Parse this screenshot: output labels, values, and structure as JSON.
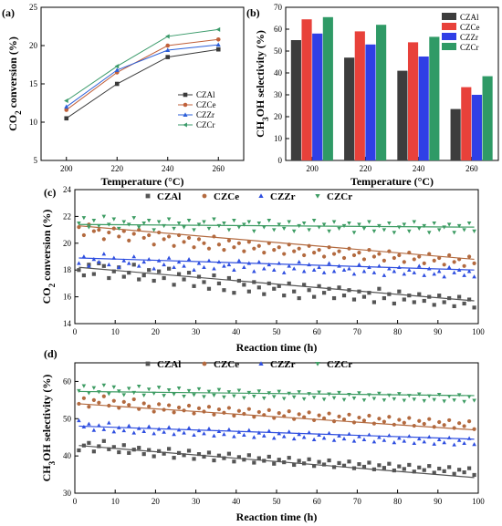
{
  "chart_data": [
    {
      "panel": "(a)",
      "type": "line",
      "xlabel": "Temperature (°C)",
      "ylabel": "CO₂ conversion (%)",
      "xlim": [
        190,
        270
      ],
      "ylim": [
        5,
        25
      ],
      "x": [
        200,
        220,
        240,
        260
      ],
      "xticks": [
        200,
        220,
        240,
        260
      ],
      "yticks": [
        5,
        10,
        15,
        20,
        25
      ],
      "legend_position": "center-right",
      "series": [
        {
          "name": "CZAl",
          "marker": "square",
          "color": "#3a3a3a",
          "values": [
            10.5,
            15.0,
            18.5,
            19.5
          ]
        },
        {
          "name": "CZCe",
          "marker": "circle",
          "color": "#c0603a",
          "values": [
            11.6,
            16.5,
            20.0,
            20.8
          ]
        },
        {
          "name": "CZZr",
          "marker": "triangle-up",
          "color": "#2b5fd9",
          "values": [
            12.0,
            16.8,
            19.4,
            20.1
          ]
        },
        {
          "name": "CZCr",
          "marker": "triangle-left",
          "color": "#3a9a6a",
          "values": [
            12.8,
            17.3,
            21.2,
            22.1
          ]
        }
      ]
    },
    {
      "panel": "(b)",
      "type": "bar",
      "xlabel": "Temperature (°C)",
      "ylabel": "CH₃OH selectivity (%)",
      "ylim": [
        0,
        70
      ],
      "yticks": [
        0,
        10,
        20,
        30,
        40,
        50,
        60,
        70
      ],
      "categories": [
        "200",
        "220",
        "240",
        "260"
      ],
      "legend_position": "top-right",
      "series": [
        {
          "name": "CZAl",
          "color": "#3d3d3d",
          "values": [
            55,
            47,
            41,
            23.5
          ]
        },
        {
          "name": "CZCe",
          "color": "#e8413a",
          "values": [
            64.5,
            59,
            54,
            33.5
          ]
        },
        {
          "name": "CZZr",
          "color": "#2f3fe6",
          "values": [
            58,
            53,
            47.5,
            30
          ]
        },
        {
          "name": "CZCr",
          "color": "#2f9a66",
          "values": [
            65.5,
            62,
            56.5,
            38.5
          ]
        }
      ]
    },
    {
      "panel": "(c)",
      "type": "scatter",
      "xlabel": "Reaction time (h)",
      "ylabel": "CO₂ conversion (%)",
      "xlim": [
        0,
        100
      ],
      "ylim": [
        14,
        24
      ],
      "xticks": [
        0,
        10,
        20,
        30,
        40,
        50,
        60,
        70,
        80,
        90,
        100
      ],
      "yticks": [
        14,
        16,
        18,
        20,
        22,
        24
      ],
      "legend_position": "top",
      "series": [
        {
          "name": "CZAl",
          "marker": "square",
          "color": "#555555",
          "fit": [
            18.2,
            15.7
          ],
          "values": [
            18.0,
            17.6,
            18.4,
            17.7,
            18.5,
            18.3,
            17.4,
            17.9,
            18.2,
            17.5,
            17.8,
            18.4,
            17.3,
            17.6,
            18.0,
            17.2,
            17.9,
            17.4,
            18.1,
            16.9,
            17.7,
            17.3,
            17.8,
            16.8,
            17.5,
            17.1,
            16.6,
            17.6,
            17.0,
            16.5,
            17.4,
            16.3,
            17.2,
            16.9,
            16.4,
            17.1,
            16.7,
            16.2,
            17.0,
            16.6,
            16.8,
            16.1,
            17.0,
            16.4,
            15.9,
            16.9,
            16.5,
            16.0,
            16.8,
            16.3,
            16.6,
            15.9,
            16.7,
            16.1,
            16.5,
            15.8,
            16.4,
            16.0,
            16.3,
            15.6,
            16.6,
            15.9,
            16.2,
            15.5,
            16.4,
            15.8,
            16.1,
            15.6,
            16.2,
            15.7,
            16.0,
            15.4,
            16.1,
            15.6,
            15.9,
            15.3,
            16.0,
            15.5,
            15.8,
            15.2
          ]
        },
        {
          "name": "CZCe",
          "marker": "circle",
          "color": "#b36a3f",
          "fit": [
            21.3,
            18.8
          ],
          "values": [
            21.2,
            20.6,
            21.4,
            20.9,
            21.0,
            20.3,
            20.8,
            21.1,
            20.5,
            20.9,
            20.2,
            20.7,
            21.0,
            20.4,
            20.6,
            19.9,
            20.8,
            20.3,
            20.5,
            19.8,
            20.6,
            20.1,
            20.4,
            19.7,
            20.3,
            20.0,
            19.6,
            20.5,
            19.9,
            19.5,
            20.2,
            19.7,
            20.0,
            19.4,
            20.1,
            19.6,
            19.8,
            19.3,
            20.0,
            19.5,
            19.7,
            19.2,
            19.9,
            19.4,
            19.6,
            19.1,
            19.8,
            19.3,
            19.5,
            19.0,
            19.7,
            19.2,
            19.4,
            18.9,
            19.6,
            19.1,
            19.3,
            18.8,
            19.5,
            19.0,
            19.2,
            18.7,
            19.4,
            18.9,
            19.1,
            18.6,
            19.3,
            18.8,
            19.0,
            18.5,
            19.2,
            18.7,
            18.9,
            18.4,
            19.1,
            18.6,
            18.8,
            18.3,
            19.0,
            18.5
          ]
        },
        {
          "name": "CZZr",
          "marker": "triangle-up",
          "color": "#2f4fe0",
          "fit": [
            18.9,
            18.0
          ],
          "values": [
            18.5,
            19.0,
            18.3,
            18.8,
            18.6,
            19.2,
            18.4,
            18.9,
            18.2,
            18.7,
            18.5,
            19.0,
            18.3,
            18.6,
            18.8,
            18.1,
            18.7,
            18.4,
            18.9,
            18.2,
            18.6,
            18.3,
            18.8,
            18.0,
            18.5,
            18.2,
            18.7,
            18.1,
            18.6,
            18.3,
            18.4,
            18.0,
            18.7,
            18.2,
            18.5,
            17.9,
            18.6,
            18.1,
            18.4,
            18.0,
            18.5,
            17.8,
            18.3,
            18.1,
            18.6,
            17.9,
            18.4,
            18.0,
            18.2,
            17.8,
            18.5,
            17.9,
            18.3,
            18.0,
            18.1,
            17.7,
            18.4,
            17.9,
            18.2,
            17.8,
            18.3,
            17.6,
            18.1,
            17.9,
            18.2,
            17.7,
            18.0,
            17.8,
            18.3,
            17.6,
            18.1,
            17.7,
            17.9,
            17.5,
            18.2,
            17.8,
            18.0,
            17.6,
            17.9,
            17.5
          ]
        },
        {
          "name": "CZCr",
          "marker": "triangle-down",
          "color": "#3d9c63",
          "fit": [
            21.4,
            21.2
          ],
          "values": [
            21.5,
            21.9,
            21.2,
            21.7,
            21.3,
            22.0,
            21.4,
            21.8,
            21.1,
            21.6,
            21.4,
            21.9,
            21.2,
            21.5,
            21.7,
            21.0,
            21.6,
            21.3,
            21.8,
            21.1,
            21.5,
            21.2,
            21.7,
            21.0,
            21.4,
            21.6,
            21.1,
            21.8,
            21.3,
            21.5,
            21.0,
            21.7,
            21.2,
            21.4,
            21.6,
            20.9,
            21.5,
            21.2,
            21.7,
            21.0,
            21.4,
            21.1,
            21.6,
            20.9,
            21.3,
            21.5,
            21.0,
            21.7,
            21.2,
            21.4,
            20.9,
            21.6,
            21.1,
            21.3,
            21.5,
            20.8,
            21.4,
            21.1,
            21.6,
            20.9,
            21.3,
            21.0,
            21.5,
            20.8,
            21.2,
            21.4,
            20.9,
            21.6,
            21.1,
            21.3,
            20.8,
            21.5,
            21.0,
            21.2,
            21.4,
            20.8,
            21.3,
            21.0,
            21.5,
            20.9
          ]
        }
      ]
    },
    {
      "panel": "(d)",
      "type": "scatter",
      "xlabel": "Reaction time (h)",
      "ylabel": "CH₃OH selectivity (%)",
      "xlim": [
        0,
        100
      ],
      "ylim": [
        30,
        65
      ],
      "xticks": [
        0,
        10,
        20,
        30,
        40,
        50,
        60,
        70,
        80,
        90,
        100
      ],
      "yticks": [
        30,
        40,
        50,
        60
      ],
      "legend_position": "top",
      "series": [
        {
          "name": "CZAl",
          "marker": "square",
          "color": "#555555",
          "fit": [
            42.8,
            34.2
          ],
          "values": [
            41.5,
            42.8,
            43.5,
            41.2,
            42.6,
            44.0,
            41.8,
            42.4,
            41.0,
            42.9,
            40.8,
            41.7,
            42.2,
            40.5,
            41.6,
            39.9,
            41.3,
            40.6,
            41.9,
            39.5,
            40.8,
            40.2,
            41.4,
            39.2,
            40.5,
            39.8,
            40.9,
            38.8,
            40.1,
            39.4,
            40.6,
            38.5,
            39.7,
            39.0,
            40.2,
            38.2,
            39.4,
            38.7,
            39.8,
            37.9,
            39.0,
            38.3,
            39.5,
            37.6,
            38.7,
            38.0,
            39.1,
            37.3,
            38.4,
            37.7,
            38.8,
            37.0,
            38.1,
            37.4,
            38.5,
            36.7,
            37.8,
            37.1,
            38.2,
            36.4,
            37.5,
            36.8,
            37.9,
            36.1,
            37.2,
            36.5,
            37.6,
            35.8,
            36.9,
            36.2,
            37.3,
            35.5,
            36.6,
            35.9,
            37.0,
            35.2,
            36.3,
            35.6,
            36.7,
            34.9
          ]
        },
        {
          "name": "CZCe",
          "marker": "circle",
          "color": "#b36a3f",
          "fit": [
            54.0,
            47.0
          ],
          "values": [
            54.0,
            55.5,
            53.2,
            55.0,
            54.3,
            56.0,
            53.5,
            54.8,
            52.9,
            54.5,
            53.7,
            55.2,
            52.6,
            54.1,
            53.3,
            51.9,
            53.9,
            52.4,
            53.6,
            51.7,
            53.0,
            52.2,
            53.5,
            51.4,
            52.8,
            51.9,
            53.2,
            51.1,
            52.5,
            51.6,
            52.9,
            50.8,
            52.1,
            51.3,
            52.6,
            50.5,
            51.8,
            51.0,
            52.3,
            50.2,
            51.5,
            50.7,
            52.0,
            49.9,
            51.2,
            50.4,
            51.7,
            49.6,
            50.9,
            50.1,
            51.4,
            49.3,
            50.6,
            49.8,
            51.1,
            49.0,
            50.3,
            49.5,
            50.8,
            48.7,
            50.0,
            49.2,
            50.5,
            48.4,
            49.7,
            48.9,
            50.2,
            48.1,
            49.4,
            48.6,
            49.9,
            47.8,
            49.1,
            48.3,
            49.6,
            47.5,
            48.8,
            48.0,
            49.3,
            47.2
          ]
        },
        {
          "name": "CZZr",
          "marker": "triangle-up",
          "color": "#2f4fe0",
          "fit": [
            48.0,
            44.5
          ],
          "values": [
            49.5,
            47.8,
            48.6,
            46.9,
            48.2,
            47.1,
            48.9,
            46.5,
            47.6,
            46.8,
            48.1,
            46.2,
            47.4,
            46.6,
            47.9,
            46.0,
            47.2,
            46.4,
            47.7,
            45.8,
            47.0,
            46.2,
            47.5,
            45.6,
            46.8,
            46.0,
            47.3,
            45.4,
            46.6,
            45.8,
            47.1,
            45.2,
            46.4,
            45.6,
            46.9,
            45.0,
            46.2,
            45.4,
            46.7,
            44.8,
            46.0,
            45.2,
            46.5,
            44.6,
            45.8,
            45.0,
            46.3,
            44.4,
            45.6,
            44.8,
            46.1,
            44.2,
            45.4,
            44.6,
            45.9,
            44.0,
            45.2,
            44.4,
            45.7,
            43.8,
            45.0,
            44.2,
            45.5,
            43.6,
            44.8,
            44.0,
            45.3,
            43.4,
            44.6,
            43.8,
            45.1,
            43.2,
            44.4,
            43.6,
            44.9,
            43.0,
            44.2,
            43.4,
            44.7,
            43.1
          ]
        },
        {
          "name": "CZCr",
          "marker": "triangle-down",
          "color": "#3d9c63",
          "fit": [
            57.3,
            56.2
          ],
          "values": [
            57.5,
            58.8,
            56.9,
            58.3,
            57.2,
            59.0,
            56.7,
            58.5,
            57.4,
            56.4,
            58.1,
            57.0,
            58.7,
            56.3,
            57.9,
            56.8,
            58.4,
            56.2,
            57.7,
            56.6,
            58.2,
            56.0,
            57.5,
            56.4,
            58.0,
            55.9,
            57.3,
            56.3,
            57.8,
            55.8,
            57.2,
            56.1,
            57.6,
            55.6,
            57.0,
            56.0,
            57.4,
            55.5,
            56.9,
            55.9,
            57.3,
            55.4,
            56.8,
            55.8,
            57.2,
            55.3,
            56.7,
            55.7,
            57.1,
            55.2,
            56.6,
            55.6,
            57.0,
            55.1,
            56.5,
            55.5,
            56.9,
            55.0,
            56.4,
            55.4,
            56.8,
            55.0,
            56.3,
            55.3,
            56.7,
            54.9,
            56.2,
            55.2,
            56.6,
            54.8,
            56.1,
            55.1,
            56.5,
            54.7,
            56.0,
            55.0,
            56.4,
            54.6,
            55.9,
            54.9
          ]
        }
      ]
    }
  ]
}
